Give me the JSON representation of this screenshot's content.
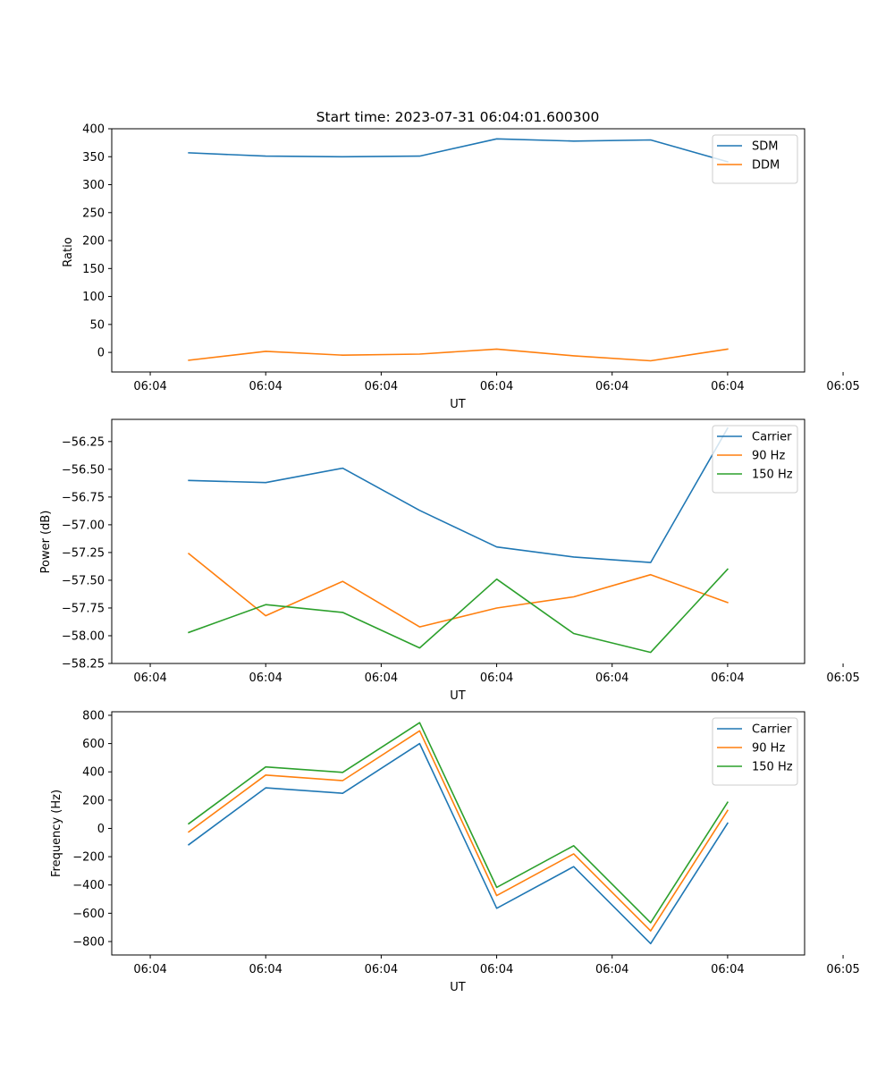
{
  "chart_data": [
    {
      "type": "line",
      "title": "Start time: 2023-07-31 06:04:01.600300",
      "xlabel": "UT",
      "ylabel": "Ratio",
      "xlim": [
        0,
        9
      ],
      "xticks": [
        0.5,
        2,
        3.5,
        5,
        6.5,
        8,
        9.5
      ],
      "xtick_labels": [
        "06:04",
        "06:04",
        "06:04",
        "06:04",
        "06:04",
        "06:04",
        "06:05"
      ],
      "ylim": [
        -35,
        400
      ],
      "yticks": [
        0,
        50,
        100,
        150,
        200,
        250,
        300,
        350,
        400
      ],
      "ytick_labels": [
        "0",
        "50",
        "100",
        "150",
        "200",
        "250",
        "300",
        "350",
        "400"
      ],
      "legend_position": "top-right",
      "x": [
        1,
        2,
        3,
        4,
        5,
        6,
        7,
        8
      ],
      "series": [
        {
          "name": "SDM",
          "color": "#1f77b4",
          "values": [
            357,
            351,
            350,
            351,
            382,
            378,
            380,
            341
          ]
        },
        {
          "name": "DDM",
          "color": "#ff7f0e",
          "values": [
            -14,
            2,
            -5,
            -3,
            6,
            -6,
            -15,
            6
          ]
        }
      ]
    },
    {
      "type": "line",
      "title": "",
      "xlabel": "UT",
      "ylabel": "Power (dB)",
      "xlim": [
        0,
        9
      ],
      "xticks": [
        0.5,
        2,
        3.5,
        5,
        6.5,
        8,
        9.5
      ],
      "xtick_labels": [
        "06:04",
        "06:04",
        "06:04",
        "06:04",
        "06:04",
        "06:04",
        "06:05"
      ],
      "ylim": [
        -58.25,
        -56.05
      ],
      "yticks": [
        -56.25,
        -56.5,
        -56.75,
        -57.0,
        -57.25,
        -57.5,
        -57.75,
        -58.0,
        -58.25
      ],
      "ytick_labels": [
        "−56.25",
        "−56.50",
        "−56.75",
        "−57.00",
        "−57.25",
        "−57.50",
        "−57.75",
        "−58.00",
        "−58.25"
      ],
      "legend_position": "top-right",
      "x": [
        1,
        2,
        3,
        4,
        5,
        6,
        7,
        8
      ],
      "series": [
        {
          "name": "Carrier",
          "color": "#1f77b4",
          "values": [
            -56.6,
            -56.62,
            -56.49,
            -56.87,
            -57.2,
            -57.29,
            -57.34,
            -56.13
          ]
        },
        {
          "name": "90 Hz",
          "color": "#ff7f0e",
          "values": [
            -57.26,
            -57.82,
            -57.51,
            -57.92,
            -57.75,
            -57.65,
            -57.45,
            -57.7
          ]
        },
        {
          "name": "150 Hz",
          "color": "#2ca02c",
          "values": [
            -57.97,
            -57.72,
            -57.79,
            -58.11,
            -57.49,
            -57.98,
            -58.15,
            -57.4
          ]
        }
      ]
    },
    {
      "type": "line",
      "title": "",
      "xlabel": "UT",
      "ylabel": "Frequency (Hz)",
      "xlim": [
        0,
        9
      ],
      "xticks": [
        0.5,
        2,
        3.5,
        5,
        6.5,
        8,
        9.5
      ],
      "xtick_labels": [
        "06:04",
        "06:04",
        "06:04",
        "06:04",
        "06:04",
        "06:04",
        "06:05"
      ],
      "ylim": [
        -895,
        825
      ],
      "yticks": [
        800,
        600,
        400,
        200,
        0,
        -200,
        -400,
        -600,
        -800
      ],
      "ytick_labels": [
        "800",
        "600",
        "400",
        "200",
        "0",
        "−200",
        "−400",
        "−600",
        "−800"
      ],
      "legend_position": "top-right",
      "x": [
        1,
        2,
        3,
        4,
        5,
        6,
        7,
        8
      ],
      "series": [
        {
          "name": "Carrier",
          "color": "#1f77b4",
          "values": [
            -115,
            287,
            248,
            600,
            -565,
            -270,
            -815,
            37
          ]
        },
        {
          "name": "90 Hz",
          "color": "#ff7f0e",
          "values": [
            -25,
            377,
            338,
            690,
            -475,
            -180,
            -725,
            127
          ]
        },
        {
          "name": "150 Hz",
          "color": "#2ca02c",
          "values": [
            33,
            435,
            396,
            748,
            -417,
            -122,
            -667,
            185
          ]
        }
      ]
    }
  ]
}
